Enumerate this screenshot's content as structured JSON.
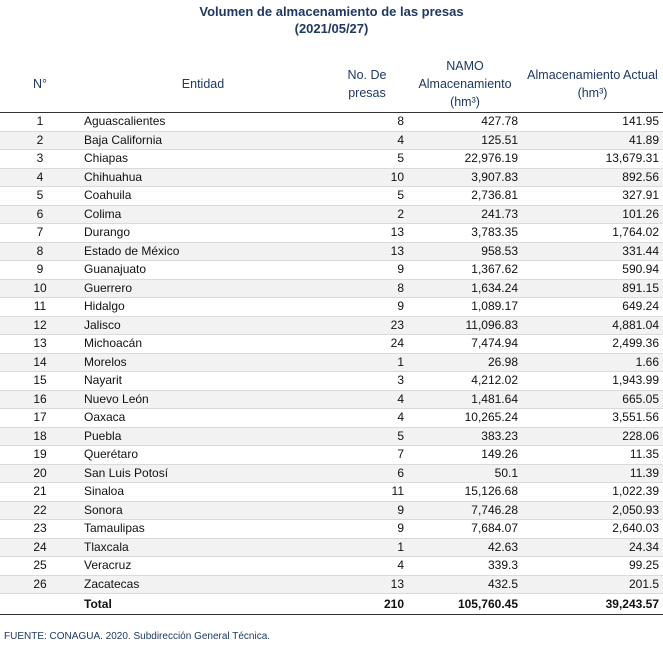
{
  "title": "Volumen de almacenamiento de las presas",
  "subtitle": "(2021/05/27)",
  "headers": {
    "no": "N°",
    "entidad": "Entidad",
    "presas_line1": "No. De",
    "presas_line2": "presas",
    "namo_line1": "NAMO",
    "namo_line2": "Almacenamiento",
    "namo_line3": "(hm³)",
    "actual_line1": "Almacenamiento Actual",
    "actual_line2": "(hm³)"
  },
  "rows": [
    {
      "no": "1",
      "entidad": "Aguascalientes",
      "presas": "8",
      "namo": "427.78",
      "actual": "141.95"
    },
    {
      "no": "2",
      "entidad": "Baja California",
      "presas": "4",
      "namo": "125.51",
      "actual": "41.89"
    },
    {
      "no": "3",
      "entidad": "Chiapas",
      "presas": "5",
      "namo": "22,976.19",
      "actual": "13,679.31"
    },
    {
      "no": "4",
      "entidad": "Chihuahua",
      "presas": "10",
      "namo": "3,907.83",
      "actual": "892.56"
    },
    {
      "no": "5",
      "entidad": "Coahuila",
      "presas": "5",
      "namo": "2,736.81",
      "actual": "327.91"
    },
    {
      "no": "6",
      "entidad": "Colima",
      "presas": "2",
      "namo": "241.73",
      "actual": "101.26"
    },
    {
      "no": "7",
      "entidad": "Durango",
      "presas": "13",
      "namo": "3,783.35",
      "actual": "1,764.02"
    },
    {
      "no": "8",
      "entidad": "Estado de México",
      "presas": "13",
      "namo": "958.53",
      "actual": "331.44"
    },
    {
      "no": "9",
      "entidad": "Guanajuato",
      "presas": "9",
      "namo": "1,367.62",
      "actual": "590.94"
    },
    {
      "no": "10",
      "entidad": "Guerrero",
      "presas": "8",
      "namo": "1,634.24",
      "actual": "891.15"
    },
    {
      "no": "11",
      "entidad": "Hidalgo",
      "presas": "9",
      "namo": "1,089.17",
      "actual": "649.24"
    },
    {
      "no": "12",
      "entidad": "Jalisco",
      "presas": "23",
      "namo": "11,096.83",
      "actual": "4,881.04"
    },
    {
      "no": "13",
      "entidad": "Michoacán",
      "presas": "24",
      "namo": "7,474.94",
      "actual": "2,499.36"
    },
    {
      "no": "14",
      "entidad": "Morelos",
      "presas": "1",
      "namo": "26.98",
      "actual": "1.66"
    },
    {
      "no": "15",
      "entidad": "Nayarit",
      "presas": "3",
      "namo": "4,212.02",
      "actual": "1,943.99"
    },
    {
      "no": "16",
      "entidad": "Nuevo León",
      "presas": "4",
      "namo": "1,481.64",
      "actual": "665.05"
    },
    {
      "no": "17",
      "entidad": "Oaxaca",
      "presas": "4",
      "namo": "10,265.24",
      "actual": "3,551.56"
    },
    {
      "no": "18",
      "entidad": "Puebla",
      "presas": "5",
      "namo": "383.23",
      "actual": "228.06"
    },
    {
      "no": "19",
      "entidad": "Querétaro",
      "presas": "7",
      "namo": "149.26",
      "actual": "11.35"
    },
    {
      "no": "20",
      "entidad": "San Luis Potosí",
      "presas": "6",
      "namo": "50.1",
      "actual": "11.39"
    },
    {
      "no": "21",
      "entidad": "Sinaloa",
      "presas": "11",
      "namo": "15,126.68",
      "actual": "1,022.39"
    },
    {
      "no": "22",
      "entidad": "Sonora",
      "presas": "9",
      "namo": "7,746.28",
      "actual": "2,050.93"
    },
    {
      "no": "23",
      "entidad": "Tamaulipas",
      "presas": "9",
      "namo": "7,684.07",
      "actual": "2,640.03"
    },
    {
      "no": "24",
      "entidad": "Tlaxcala",
      "presas": "1",
      "namo": "42.63",
      "actual": "24.34"
    },
    {
      "no": "25",
      "entidad": "Veracruz",
      "presas": "4",
      "namo": "339.3",
      "actual": "99.25"
    },
    {
      "no": "26",
      "entidad": "Zacatecas",
      "presas": "13",
      "namo": "432.5",
      "actual": "201.5"
    }
  ],
  "total": {
    "label": "Total",
    "presas": "210",
    "namo": "105,760.45",
    "actual": "39,243.57"
  },
  "source": "FUENTE: CONAGUA. 2020. Subdirección General Técnica."
}
